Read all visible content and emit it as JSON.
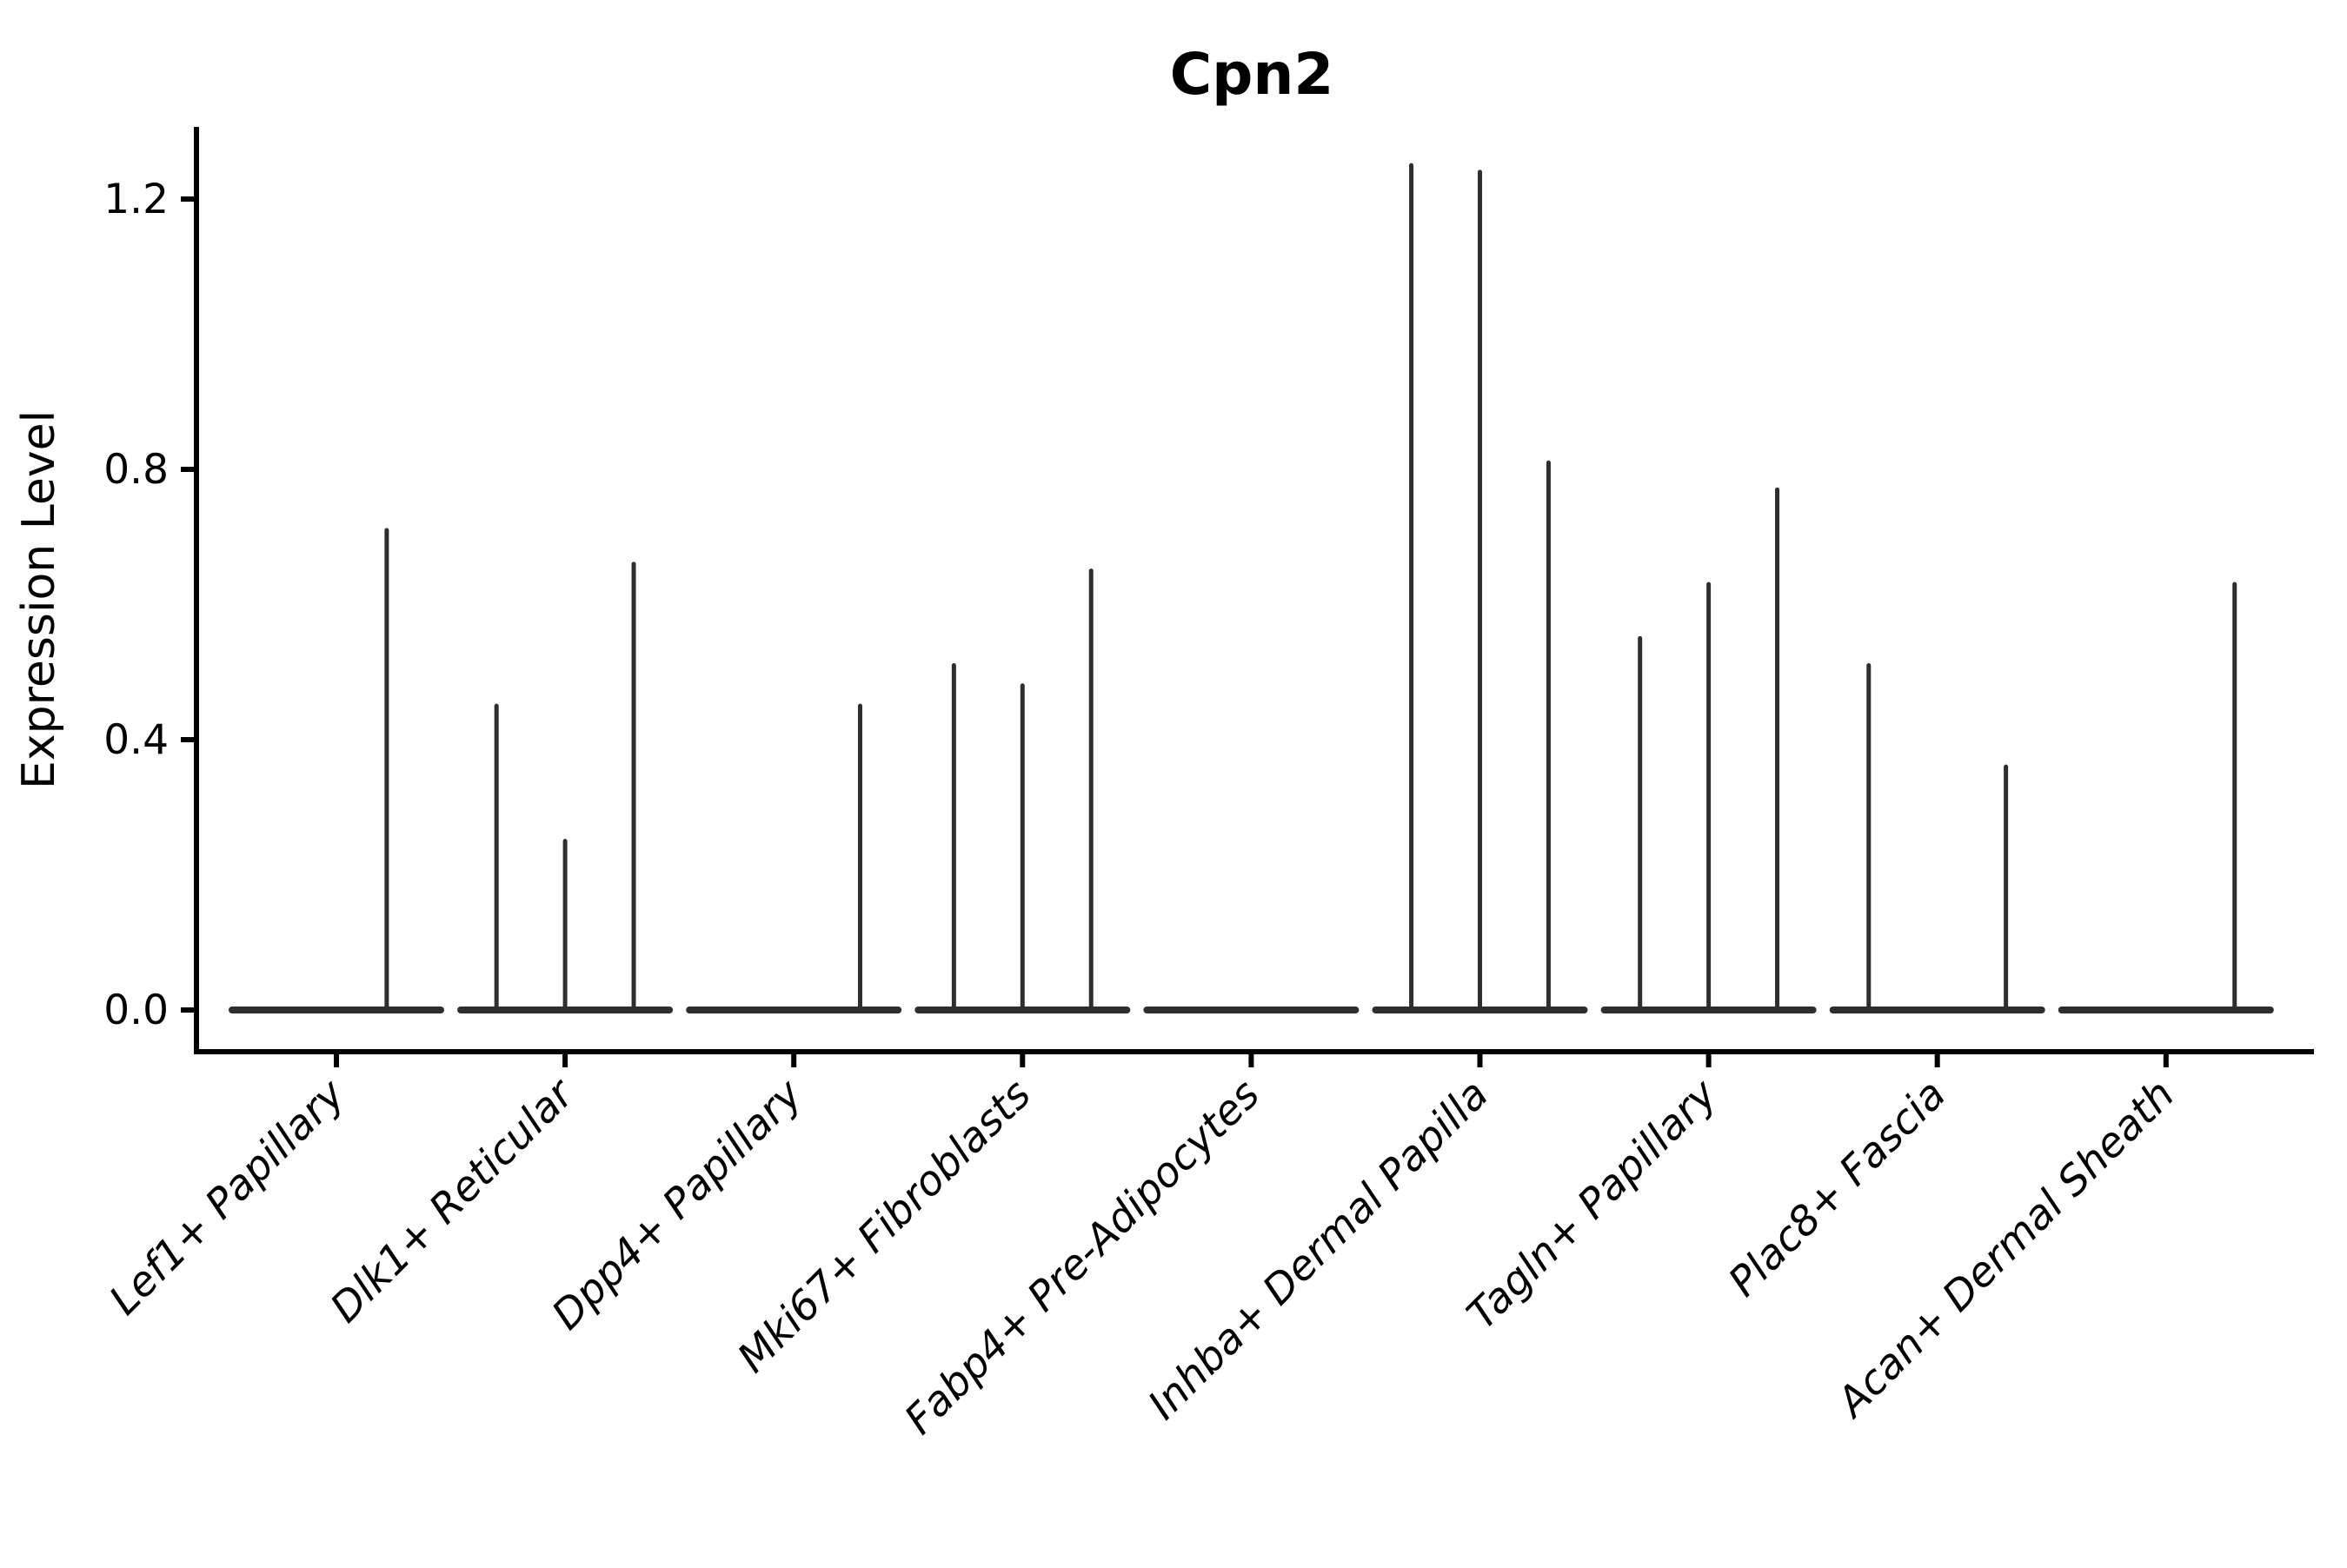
{
  "title": "Cpn2",
  "chart_data": {
    "type": "violin",
    "title": "Cpn2",
    "xlabel": "",
    "ylabel": "Expression Level",
    "ylim": [
      -0.06,
      1.31
    ],
    "yticks": [
      0.0,
      0.4,
      0.8,
      1.2
    ],
    "ytick_labels": [
      "0.0",
      "0.4",
      "0.8",
      "1.2"
    ],
    "grid": false,
    "legend": "none",
    "violin_color": "#2e2e2e",
    "axis_color": "#000000",
    "categories": [
      "Lef1+ Papillary",
      "Dlk1+ Reticular",
      "Dpp4+ Papillary",
      "Mki67+ Fibroblasts",
      "Fabp4+ Pre-Adipocytes",
      "Inhba+ Dermal Papilla",
      "Tagln+ Papillary",
      "Plac8+ Fascia",
      "Acan+ Dermal Sheath"
    ],
    "violins": [
      {
        "category": "Lef1+ Papillary",
        "baseline_value": 0,
        "spikes": [
          {
            "offset": 0.22,
            "max": 0.71
          }
        ]
      },
      {
        "category": "Dlk1+ Reticular",
        "baseline_value": 0,
        "spikes": [
          {
            "offset": -0.3,
            "max": 0.45
          },
          {
            "offset": 0.0,
            "max": 0.25
          },
          {
            "offset": 0.3,
            "max": 0.66
          }
        ]
      },
      {
        "category": "Dpp4+ Papillary",
        "baseline_value": 0,
        "spikes": [
          {
            "offset": 0.29,
            "max": 0.45
          }
        ]
      },
      {
        "category": "Mki67+ Fibroblasts",
        "baseline_value": 0,
        "spikes": [
          {
            "offset": -0.3,
            "max": 0.51
          },
          {
            "offset": 0.0,
            "max": 0.48
          },
          {
            "offset": 0.3,
            "max": 0.65
          }
        ]
      },
      {
        "category": "Fabp4+ Pre-Adipocytes",
        "baseline_value": 0,
        "spikes": []
      },
      {
        "category": "Inhba+ Dermal Papilla",
        "baseline_value": 0,
        "spikes": [
          {
            "offset": -0.3,
            "max": 1.25
          },
          {
            "offset": 0.0,
            "max": 1.24
          },
          {
            "offset": 0.3,
            "max": 0.81
          }
        ]
      },
      {
        "category": "Tagln+ Papillary",
        "baseline_value": 0,
        "spikes": [
          {
            "offset": -0.3,
            "max": 0.55
          },
          {
            "offset": 0.0,
            "max": 0.63
          },
          {
            "offset": 0.3,
            "max": 0.77
          }
        ]
      },
      {
        "category": "Plac8+ Fascia",
        "baseline_value": 0,
        "spikes": [
          {
            "offset": -0.3,
            "max": 0.51
          },
          {
            "offset": 0.3,
            "max": 0.36
          }
        ]
      },
      {
        "category": "Acan+ Dermal Sheath",
        "baseline_value": 0,
        "spikes": [
          {
            "offset": 0.3,
            "max": 0.63
          }
        ]
      }
    ]
  }
}
